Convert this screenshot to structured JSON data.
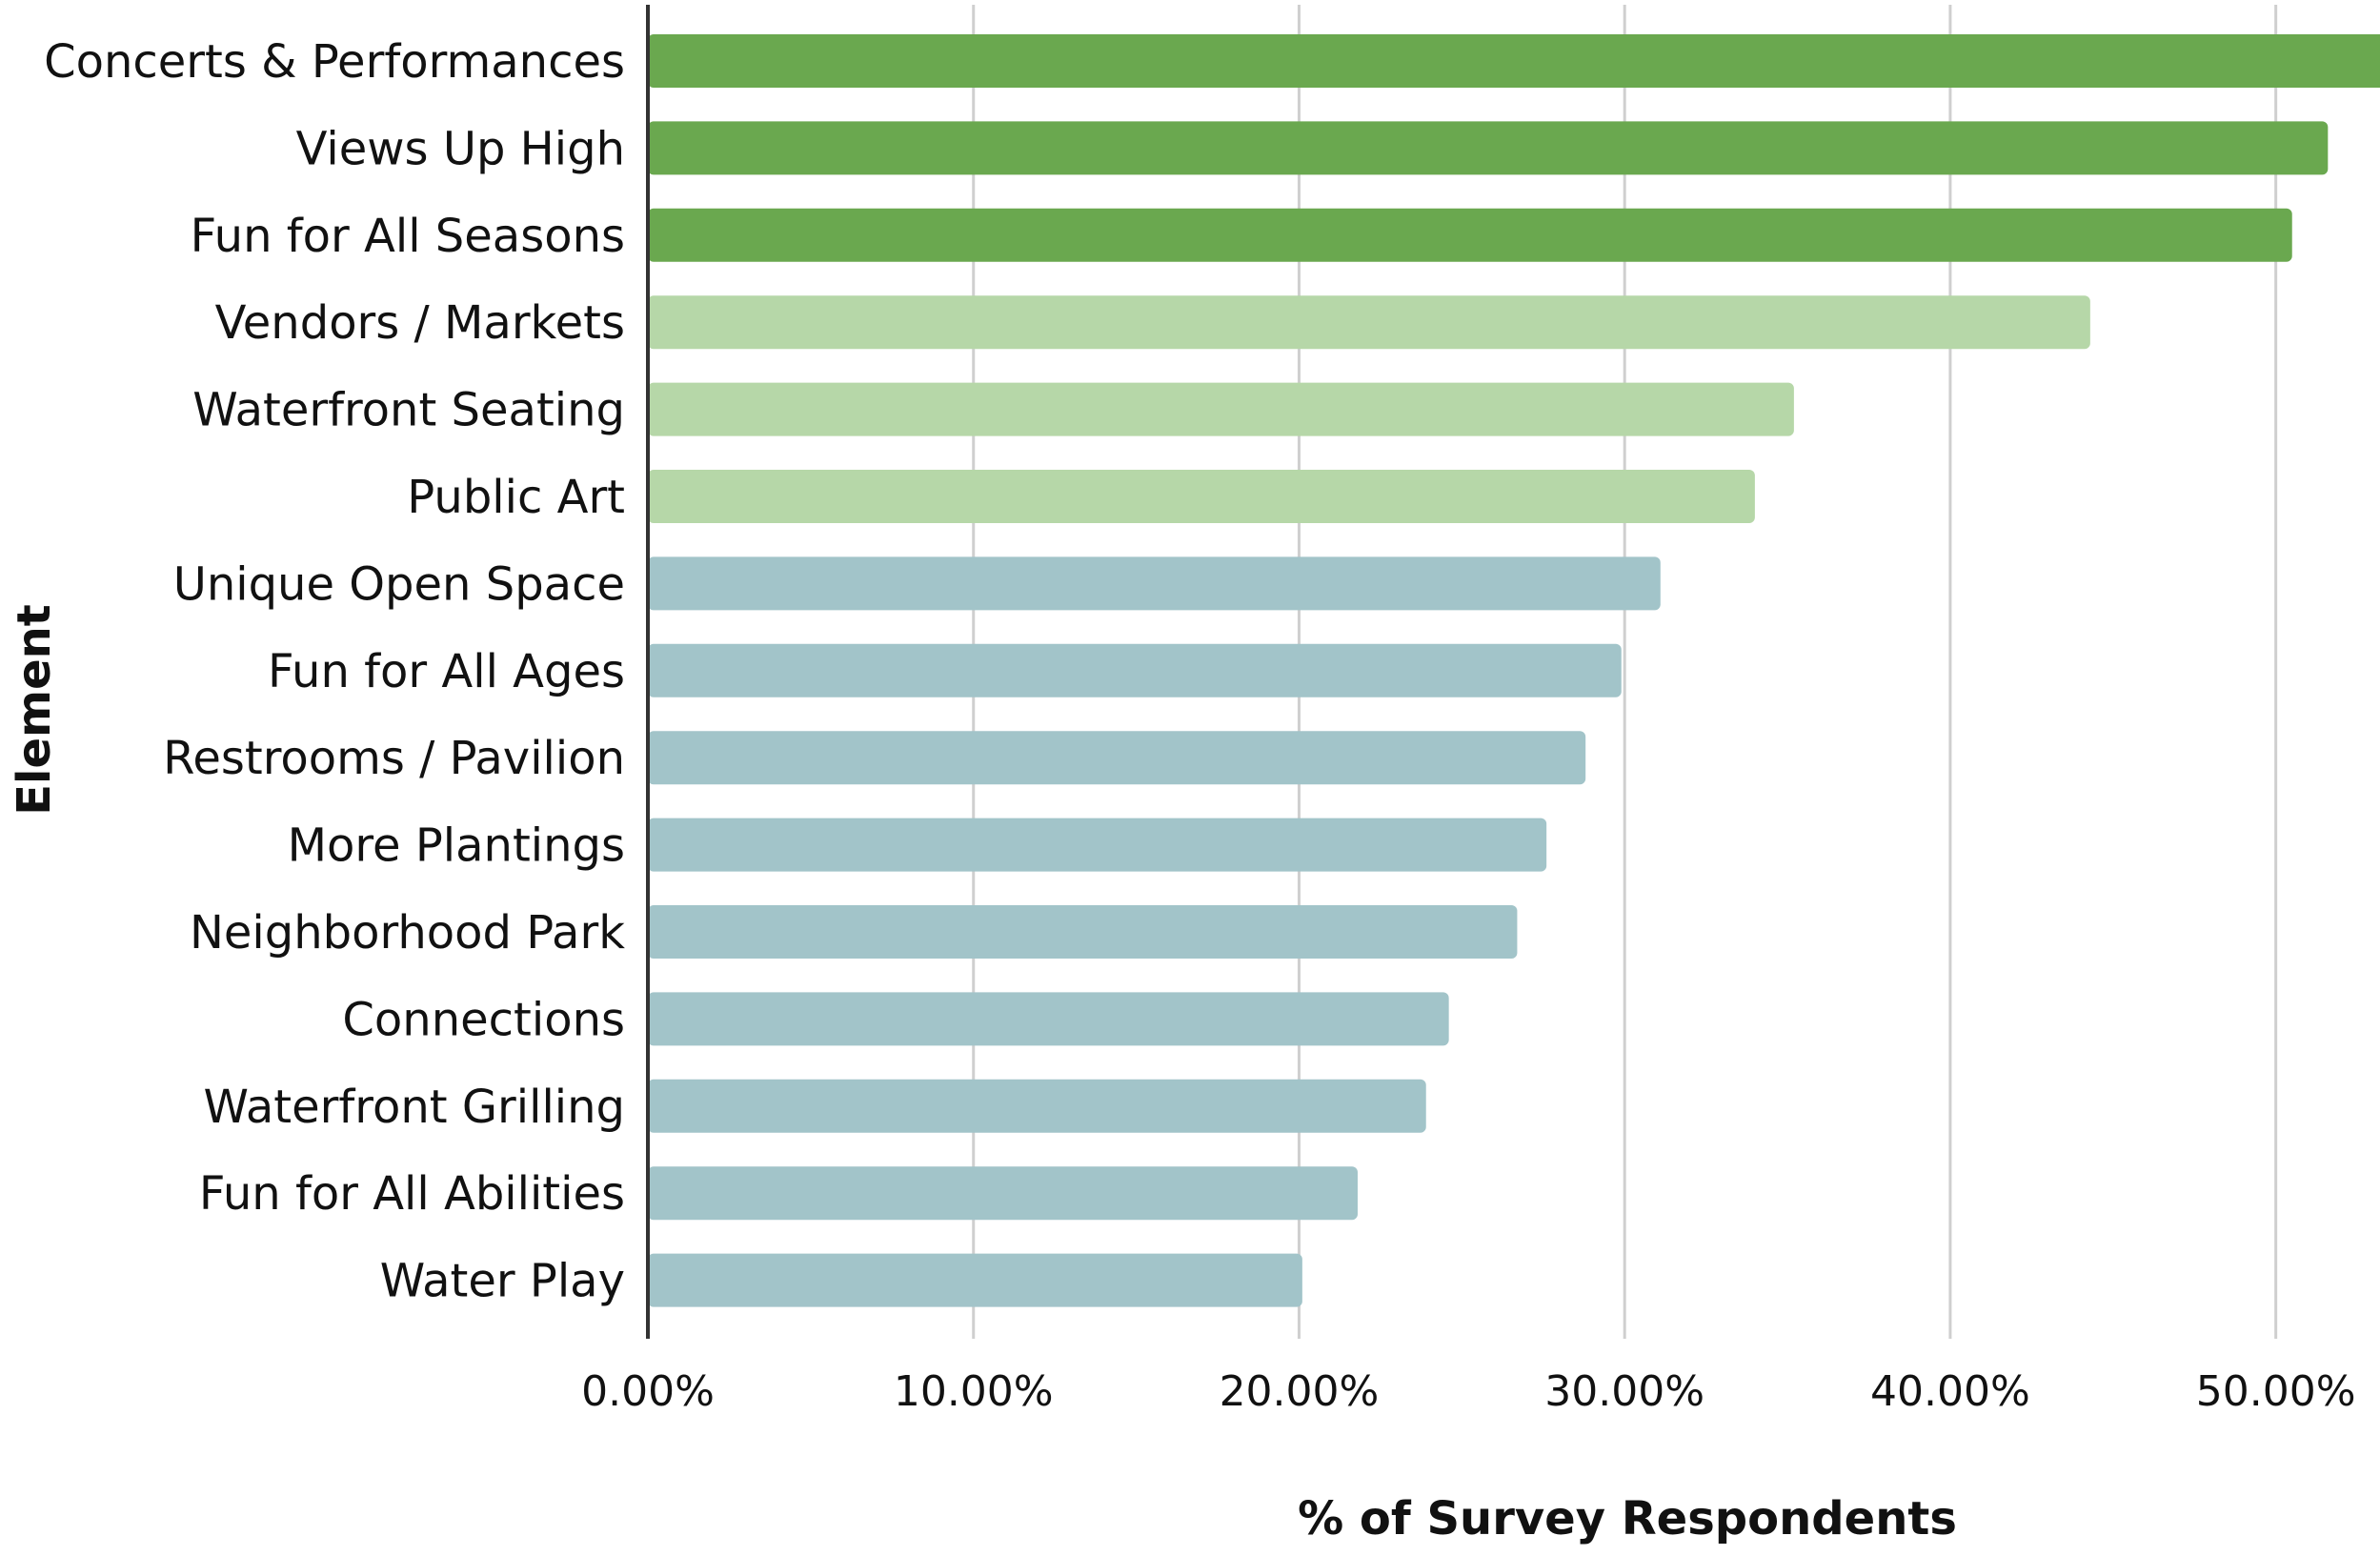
{
  "chart_data": {
    "type": "bar",
    "orientation": "horizontal",
    "categories": [
      "Concerts & Performances",
      "Views Up High",
      "Fun for All Seasons",
      "Vendors / Markets",
      "Waterfront Seating",
      "Public Art",
      "Unique Open Space",
      "Fun for All Ages",
      "Restrooms / Pavilion",
      "More Plantings",
      "Neighborhood Park",
      "Connections",
      "Waterfront Grilling",
      "Fun for All Abilities",
      "Water Play"
    ],
    "values": [
      53.8,
      51.6,
      50.5,
      44.3,
      35.2,
      34.0,
      31.1,
      29.9,
      28.8,
      27.6,
      26.7,
      24.6,
      23.9,
      21.8,
      20.1
    ],
    "bar_colors": [
      "#6aa84f",
      "#6aa84f",
      "#6aa84f",
      "#b6d7a8",
      "#b6d7a8",
      "#b6d7a8",
      "#a2c4c9",
      "#a2c4c9",
      "#a2c4c9",
      "#a2c4c9",
      "#a2c4c9",
      "#a2c4c9",
      "#a2c4c9",
      "#a2c4c9",
      "#a2c4c9"
    ],
    "xticks": [
      "0.00%",
      "10.00%",
      "20.00%",
      "30.00%",
      "40.00%",
      "50.00%"
    ],
    "xtick_values": [
      0,
      10,
      20,
      30,
      40,
      50
    ],
    "xlim": [
      0,
      53.2
    ],
    "xlabel": "% of Survey Respondents",
    "ylabel": "Element",
    "title": "",
    "grid": "vertical",
    "legend": "none"
  }
}
